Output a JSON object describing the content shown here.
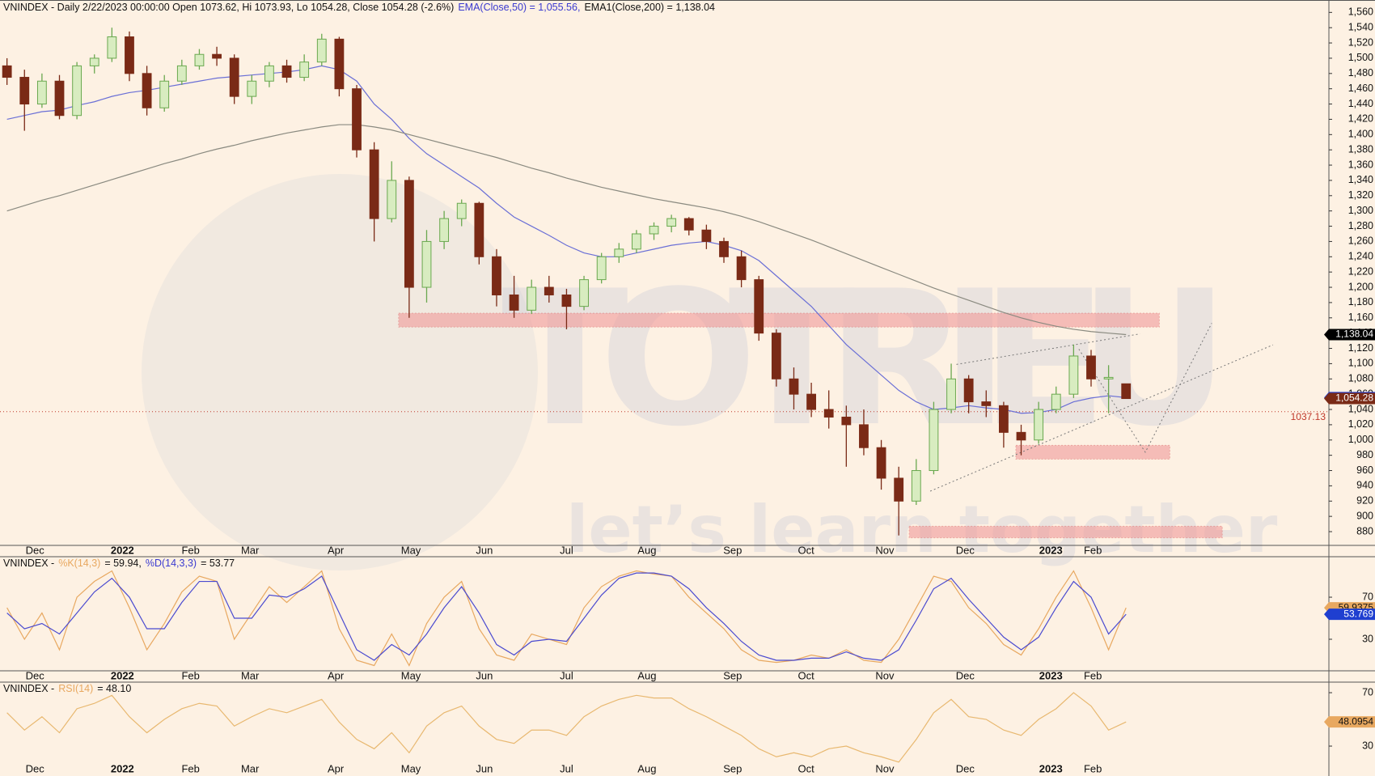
{
  "watermark": {
    "title": "TOTRIEU",
    "tagline": "let’s learn together"
  },
  "chart_data": {
    "type": "stock_panel",
    "xlim": [
      -0.4,
      75.6
    ],
    "xticks": [
      {
        "value": 1.6,
        "label": "Dec"
      },
      {
        "value": 6.6,
        "label": "2022",
        "bold": true
      },
      {
        "value": 10.5,
        "label": "Feb"
      },
      {
        "value": 13.9,
        "label": "Mar"
      },
      {
        "value": 18.8,
        "label": "Apr"
      },
      {
        "value": 23.1,
        "label": "May"
      },
      {
        "value": 27.3,
        "label": "Jun"
      },
      {
        "value": 32.0,
        "label": "Jul"
      },
      {
        "value": 36.6,
        "label": "Aug"
      },
      {
        "value": 41.5,
        "label": "Sep"
      },
      {
        "value": 45.7,
        "label": "Oct"
      },
      {
        "value": 50.2,
        "label": "Nov"
      },
      {
        "value": 54.8,
        "label": "Dec"
      },
      {
        "value": 59.7,
        "label": "2023",
        "bold": true
      },
      {
        "value": 62.1,
        "label": "Feb"
      }
    ],
    "panes": [
      {
        "type": "candlestick",
        "title": [
          "VNINDEX - Daily 2/22/2023 00:00:00 Open 1073.62, Hi 1073.93, Lo 1054.28, Close 1054.28 (-2.6%)",
          "EMA(Close,50) = 1,055.56,",
          "EMA1(Close,200) = 1,138.04"
        ],
        "title_colors": [
          "#111111",
          "#3a3ad0",
          "#111111"
        ],
        "up_color": "#6aa84f",
        "down_color": "#7a2a16",
        "open": [
          1490,
          1475,
          1440,
          1470,
          1425,
          1490,
          1500,
          1528,
          1480,
          1435,
          1470,
          1490,
          1505,
          1500,
          1450,
          1470,
          1490,
          1475,
          1495,
          1525,
          1460,
          1380,
          1290,
          1340,
          1200,
          1260,
          1290,
          1310,
          1240,
          1190,
          1170,
          1200,
          1190,
          1175,
          1210,
          1240,
          1250,
          1270,
          1280,
          1290,
          1275,
          1260,
          1240,
          1210,
          1140,
          1080,
          1060,
          1040,
          1030,
          1020,
          990,
          950,
          920,
          960,
          1040,
          1080,
          1050,
          1045,
          1010,
          1000,
          1040,
          1060,
          1110,
          1080,
          1073.62
        ],
        "high": [
          1500,
          1485,
          1480,
          1478,
          1495,
          1505,
          1540,
          1535,
          1490,
          1478,
          1498,
          1512,
          1515,
          1505,
          1478,
          1495,
          1498,
          1505,
          1532,
          1528,
          1465,
          1390,
          1365,
          1345,
          1275,
          1300,
          1315,
          1312,
          1250,
          1215,
          1210,
          1215,
          1198,
          1215,
          1245,
          1258,
          1275,
          1285,
          1295,
          1292,
          1282,
          1265,
          1248,
          1215,
          1145,
          1095,
          1075,
          1065,
          1045,
          1040,
          1000,
          965,
          975,
          1050,
          1100,
          1085,
          1065,
          1050,
          1020,
          1050,
          1070,
          1125,
          1118,
          1098,
          1073.93
        ],
        "low": [
          1465,
          1405,
          1435,
          1420,
          1420,
          1480,
          1495,
          1470,
          1425,
          1430,
          1465,
          1485,
          1490,
          1440,
          1440,
          1462,
          1468,
          1470,
          1490,
          1450,
          1370,
          1260,
          1285,
          1160,
          1180,
          1250,
          1280,
          1230,
          1175,
          1160,
          1165,
          1180,
          1145,
          1170,
          1205,
          1232,
          1245,
          1262,
          1272,
          1268,
          1250,
          1232,
          1200,
          1130,
          1070,
          1040,
          1030,
          1015,
          965,
          980,
          935,
          875,
          915,
          955,
          1035,
          1035,
          1030,
          990,
          980,
          995,
          1035,
          1055,
          1070,
          1035,
          1054.28
        ],
        "close": [
          1475,
          1440,
          1470,
          1425,
          1490,
          1500,
          1528,
          1480,
          1435,
          1470,
          1490,
          1505,
          1500,
          1450,
          1470,
          1490,
          1475,
          1495,
          1525,
          1460,
          1380,
          1290,
          1340,
          1200,
          1260,
          1290,
          1310,
          1240,
          1190,
          1170,
          1200,
          1190,
          1175,
          1210,
          1240,
          1250,
          1270,
          1280,
          1290,
          1275,
          1260,
          1240,
          1210,
          1140,
          1080,
          1060,
          1040,
          1030,
          1020,
          990,
          950,
          920,
          960,
          1040,
          1080,
          1050,
          1045,
          1010,
          1000,
          1040,
          1060,
          1110,
          1080,
          1082,
          1054.28
        ],
        "series": [
          {
            "name": "EMA(Close,50)",
            "color": "#6a6fd6",
            "values": [
              1420,
              1425,
              1430,
              1432,
              1438,
              1443,
              1450,
              1455,
              1458,
              1462,
              1466,
              1470,
              1474,
              1476,
              1478,
              1480,
              1482,
              1485,
              1490,
              1485,
              1470,
              1440,
              1420,
              1395,
              1375,
              1360,
              1345,
              1330,
              1310,
              1292,
              1280,
              1268,
              1255,
              1245,
              1240,
              1240,
              1245,
              1250,
              1255,
              1258,
              1260,
              1255,
              1248,
              1235,
              1215,
              1195,
              1175,
              1150,
              1125,
              1105,
              1085,
              1065,
              1050,
              1040,
              1042,
              1045,
              1042,
              1040,
              1035,
              1036,
              1040,
              1050,
              1055,
              1058,
              1055.56
            ]
          },
          {
            "name": "EMA1(Close,200)",
            "color": "#8a8a80",
            "values": [
              1300,
              1307,
              1314,
              1320,
              1327,
              1334,
              1341,
              1348,
              1355,
              1362,
              1368,
              1375,
              1381,
              1386,
              1392,
              1397,
              1402,
              1406,
              1410,
              1413,
              1413,
              1410,
              1406,
              1400,
              1394,
              1388,
              1382,
              1376,
              1370,
              1363,
              1356,
              1350,
              1343,
              1337,
              1331,
              1326,
              1321,
              1316,
              1312,
              1308,
              1304,
              1299,
              1293,
              1286,
              1278,
              1270,
              1262,
              1253,
              1244,
              1235,
              1226,
              1217,
              1208,
              1199,
              1191,
              1183,
              1175,
              1167,
              1160,
              1154,
              1149,
              1145,
              1142,
              1140,
              1138.04
            ]
          }
        ],
        "zones": [
          {
            "x": [
              22.4,
              65.9
            ],
            "y": [
              1148,
              1166
            ]
          },
          {
            "x": [
              57.7,
              66.5
            ],
            "y": [
              975,
              993
            ]
          },
          {
            "x": [
              51.6,
              69.5
            ],
            "y": [
              872,
              887
            ]
          }
        ],
        "zone_color": "#f09a9a",
        "trendlines": [
          {
            "x": [
              52.8,
              72.4
            ],
            "y": [
              933,
              1124.6
            ]
          },
          {
            "x": [
              54.3,
              64.8
            ],
            "y": [
              1099,
              1139
            ]
          },
          {
            "x": [
              61.3,
              65.1,
              68.9
            ],
            "y": [
              1119,
              984,
              1153
            ]
          }
        ],
        "hline": {
          "value": 1037.13,
          "color": "#c0392b"
        },
        "tags": [
          {
            "value": 1138.04,
            "label": "1,138.04",
            "color": "#000000"
          },
          {
            "value": 1055.56,
            "label": "1,055.56",
            "color": "#1f3fd0"
          },
          {
            "value": 1054.28,
            "label": "1,054.28",
            "color": "#7a2a16"
          }
        ],
        "ylim": [
          862,
          1572
        ],
        "yticks": [
          880,
          900,
          920,
          940,
          960,
          980,
          {
            "value": 1000,
            "label": "1,000"
          },
          {
            "value": 1020,
            "label": "1,020"
          },
          {
            "value": 1040,
            "label": "1,040"
          },
          {
            "value": 1060,
            "label": "1,060"
          },
          {
            "value": 1080,
            "label": "1,080"
          },
          {
            "value": 1100,
            "label": "1,100"
          },
          {
            "value": 1120,
            "label": "1,120"
          },
          {
            "value": 1140,
            "label": "1,140"
          },
          {
            "value": 1160,
            "label": "1,160"
          },
          {
            "value": 1180,
            "label": "1,180"
          },
          {
            "value": 1200,
            "label": "1,200"
          },
          {
            "value": 1220,
            "label": "1,220"
          },
          {
            "value": 1240,
            "label": "1,240"
          },
          {
            "value": 1260,
            "label": "1,260"
          },
          {
            "value": 1280,
            "label": "1,280"
          },
          {
            "value": 1300,
            "label": "1,300"
          },
          {
            "value": 1320,
            "label": "1,320"
          },
          {
            "value": 1340,
            "label": "1,340"
          },
          {
            "value": 1360,
            "label": "1,360"
          },
          {
            "value": 1380,
            "label": "1,380"
          },
          {
            "value": 1400,
            "label": "1,400"
          },
          {
            "value": 1420,
            "label": "1,420"
          },
          {
            "value": 1440,
            "label": "1,440"
          },
          {
            "value": 1460,
            "label": "1,460"
          },
          {
            "value": 1480,
            "label": "1,480"
          },
          {
            "value": 1500,
            "label": "1,500"
          },
          {
            "value": 1520,
            "label": "1,520"
          },
          {
            "value": 1540,
            "label": "1,540"
          },
          {
            "value": 1560,
            "label": "1,560"
          }
        ]
      },
      {
        "type": "line",
        "title": [
          "VNINDEX -",
          "%K(14,3)",
          "= 59.94,",
          "%D(14,3,3)",
          "= 53.77"
        ],
        "title_colors": [
          "#111111",
          "#e8a860",
          "#111111",
          "#3a3ad0",
          "#111111"
        ],
        "series": [
          {
            "name": "%K(14,3)",
            "color": "#e8a860",
            "values": [
              60,
              30,
              55,
              20,
              70,
              85,
              95,
              60,
              20,
              45,
              75,
              90,
              85,
              30,
              55,
              80,
              65,
              80,
              95,
              40,
              10,
              5,
              35,
              5,
              45,
              70,
              85,
              40,
              15,
              10,
              35,
              30,
              25,
              60,
              80,
              90,
              95,
              92,
              90,
              70,
              55,
              40,
              20,
              10,
              8,
              10,
              15,
              12,
              20,
              10,
              8,
              30,
              60,
              90,
              85,
              60,
              45,
              25,
              15,
              40,
              70,
              95,
              60,
              20,
              59.94
            ]
          },
          {
            "name": "%D(14,3,3)",
            "color": "#4a4ad0",
            "values": [
              55,
              40,
              45,
              35,
              55,
              75,
              88,
              70,
              40,
              40,
              65,
              85,
              85,
              50,
              50,
              72,
              70,
              78,
              90,
              55,
              20,
              10,
              25,
              15,
              35,
              60,
              80,
              55,
              25,
              15,
              28,
              30,
              28,
              50,
              72,
              88,
              93,
              93,
              90,
              78,
              60,
              45,
              28,
              15,
              10,
              10,
              12,
              12,
              18,
              12,
              10,
              20,
              48,
              78,
              88,
              68,
              50,
              32,
              20,
              32,
              60,
              85,
              70,
              35,
              53.77
            ]
          }
        ],
        "tags": [
          {
            "value": 59.9375,
            "color": "#e8a860"
          },
          {
            "value": 53.769,
            "color": "#1f3fd0"
          }
        ],
        "ylim": [
          0,
          108.5
        ],
        "yticks": [
          30,
          70
        ]
      },
      {
        "type": "line",
        "title": [
          "VNINDEX -",
          "RSI(14)",
          "= 48.10"
        ],
        "title_colors": [
          "#111111",
          "#e8a860",
          "#111111"
        ],
        "series": [
          {
            "name": "RSI(14)",
            "color": "#e8b870",
            "values": [
              55,
              42,
              52,
              40,
              58,
              62,
              68,
              52,
              40,
              50,
              58,
              62,
              60,
              45,
              52,
              58,
              55,
              60,
              65,
              48,
              35,
              28,
              40,
              25,
              45,
              55,
              60,
              45,
              35,
              32,
              42,
              42,
              38,
              52,
              60,
              65,
              68,
              66,
              66,
              58,
              52,
              45,
              38,
              28,
              22,
              25,
              22,
              28,
              30,
              25,
              22,
              18,
              35,
              55,
              65,
              52,
              50,
              42,
              38,
              50,
              58,
              70,
              60,
              42,
              48.1
            ]
          }
        ],
        "tags": [
          {
            "value": 48.0954,
            "color": "#e8a860"
          }
        ],
        "ylim": [
          7.6,
          77.9
        ],
        "yticks": [
          30,
          70
        ]
      }
    ]
  }
}
